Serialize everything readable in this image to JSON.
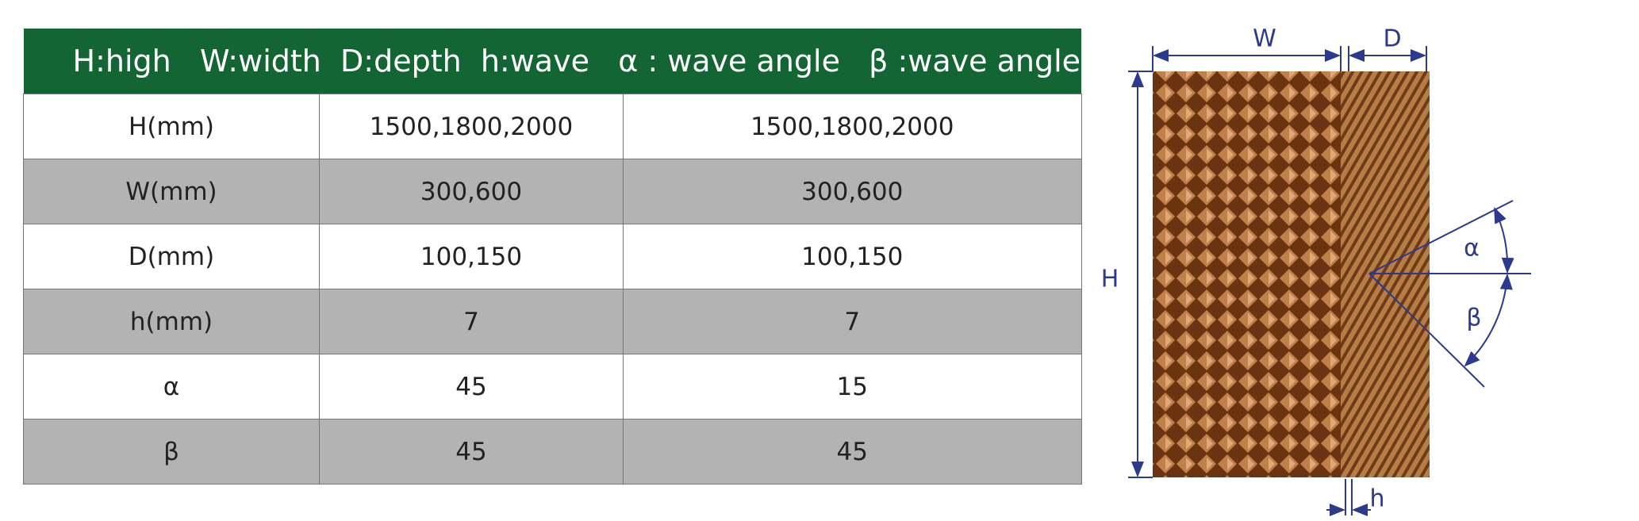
{
  "table": {
    "header": "H:high   W:width  D:depth  h:wave   α : wave angle   β :wave angle",
    "rows": [
      [
        "H(mm)",
        "1500,1800,2000",
        "1500,1800,2000"
      ],
      [
        "W(mm)",
        "300,600",
        "300,600"
      ],
      [
        "D(mm)",
        "100,150",
        "100,150"
      ],
      [
        "h(mm)",
        "7",
        "7"
      ],
      [
        "α",
        "45",
        "15"
      ],
      [
        "β",
        "45",
        "45"
      ]
    ]
  },
  "diagram": {
    "labels": {
      "width": "W",
      "depth": "D",
      "height": "H",
      "wave": "h",
      "alpha": "α",
      "beta": "β"
    }
  }
}
